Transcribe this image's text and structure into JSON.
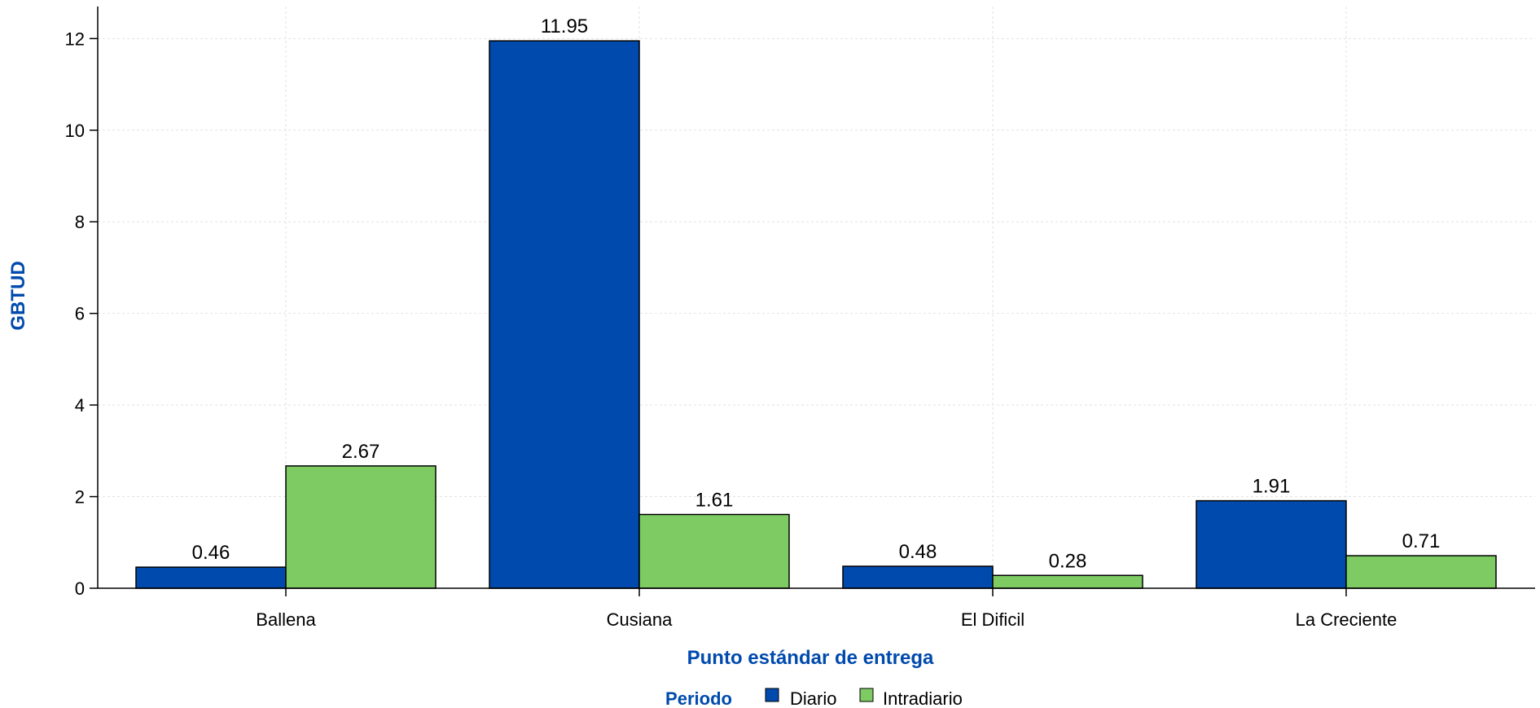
{
  "chart_data": {
    "type": "bar",
    "title": "",
    "xlabel": "Punto estándar de entrega",
    "ylabel": "GBTUD",
    "categories": [
      "Ballena",
      "Cusiana",
      "El Dificil",
      "La Creciente"
    ],
    "series": [
      {
        "name": "Diario",
        "values": [
          0.46,
          11.95,
          0.48,
          1.91
        ],
        "color": "#004AAD"
      },
      {
        "name": "Intradiario",
        "values": [
          2.67,
          1.61,
          0.28,
          0.71
        ],
        "color": "#7DCB62"
      }
    ],
    "value_labels": [
      [
        "0.46",
        "11.95",
        "0.48",
        "1.91"
      ],
      [
        "2.67",
        "1.61",
        "0.28",
        "0.71"
      ]
    ],
    "yticks": [
      0,
      2,
      4,
      6,
      8,
      10,
      12
    ],
    "ylim": [
      0,
      12.7
    ],
    "grid": true,
    "legend": {
      "title": "Periodo",
      "placement": "bottom-center",
      "items": [
        "Diario",
        "Intradiario"
      ]
    },
    "title_color": "#004AAD"
  }
}
